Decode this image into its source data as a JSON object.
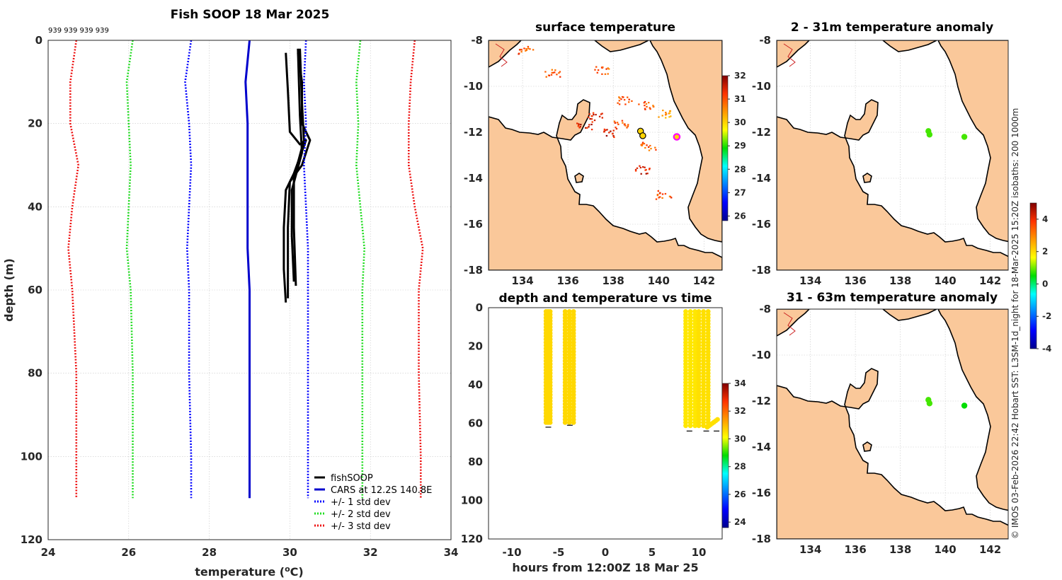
{
  "figure": {
    "credit": "© IMOS 03-Feb-2026 22:42 Hobart SST: L3SM-1d_night for 18-Mar-2025 15:20Z isobaths: 200  1000m"
  },
  "colors": {
    "fishSOOP": "#000000",
    "CARS": "#0000cc",
    "std1": "#0000ff",
    "std2": "#22dd22",
    "std3": "#ee1111",
    "land": "#fac89a"
  },
  "chart_data": [
    {
      "id": "profile",
      "type": "line",
      "title": "Fish SOOP 18 Mar 2025",
      "annotation": "939 939 939 939",
      "xlabel": "temperature (",
      "xlabel_sup": "o",
      "xlabel_end": "C)",
      "ylabel": "depth (m)",
      "xlim": [
        24,
        34
      ],
      "ylim": [
        0,
        120
      ],
      "y_reversed": true,
      "xticks": [
        "24",
        "26",
        "28",
        "30",
        "32",
        "34"
      ],
      "yticks": [
        "0",
        "20",
        "40",
        "60",
        "80",
        "100",
        "120"
      ],
      "grid": true,
      "legend_position": "bottom-right",
      "legend": [
        "fishSOOP",
        "CARS at 12.2S 140.8E",
        "+/- 1 std dev",
        "+/- 2 std dev",
        "+/- 3 std dev"
      ],
      "series": [
        {
          "name": "fishSOOP profile 1",
          "style": "solid-black",
          "points": [
            [
              29.9,
              3
            ],
            [
              29.95,
              12
            ],
            [
              30.0,
              22
            ],
            [
              30.25,
              25
            ],
            [
              30.4,
              24
            ],
            [
              30.1,
              32
            ],
            [
              29.9,
              36
            ],
            [
              29.85,
              45
            ],
            [
              29.85,
              55
            ],
            [
              29.9,
              63
            ]
          ]
        },
        {
          "name": "fishSOOP profile 2",
          "style": "solid-black",
          "points": [
            [
              30.2,
              3
            ],
            [
              30.3,
              10
            ],
            [
              30.3,
              20
            ],
            [
              30.5,
              24
            ],
            [
              30.3,
              30
            ],
            [
              30.0,
              34
            ],
            [
              29.95,
              45
            ],
            [
              29.95,
              55
            ],
            [
              29.95,
              62
            ]
          ]
        },
        {
          "name": "fishSOOP profile 3",
          "style": "solid-black",
          "points": [
            [
              30.25,
              2
            ],
            [
              30.3,
              15
            ],
            [
              30.35,
              24
            ],
            [
              30.1,
              33
            ],
            [
              30.1,
              45
            ],
            [
              30.15,
              59
            ]
          ]
        },
        {
          "name": "fishSOOP profile 4",
          "style": "solid-black",
          "points": [
            [
              30.2,
              2
            ],
            [
              30.25,
              18
            ],
            [
              30.3,
              27
            ],
            [
              30.05,
              36
            ],
            [
              30.05,
              47
            ],
            [
              30.1,
              58
            ]
          ]
        },
        {
          "name": "CARS at 12.2S 140.8E",
          "style": "solid-blue",
          "points": [
            [
              29.0,
              0
            ],
            [
              28.9,
              10
            ],
            [
              28.95,
              20
            ],
            [
              28.95,
              30
            ],
            [
              28.95,
              40
            ],
            [
              28.95,
              50
            ],
            [
              29.0,
              60
            ],
            [
              29.0,
              80
            ],
            [
              29.0,
              100
            ],
            [
              29.0,
              110
            ]
          ]
        },
        {
          "name": "-1 std dev",
          "style": "dot-blue",
          "points": [
            [
              27.55,
              0
            ],
            [
              27.4,
              10
            ],
            [
              27.5,
              20
            ],
            [
              27.55,
              30
            ],
            [
              27.5,
              40
            ],
            [
              27.45,
              50
            ],
            [
              27.5,
              60
            ],
            [
              27.5,
              80
            ],
            [
              27.55,
              100
            ],
            [
              27.55,
              110
            ]
          ]
        },
        {
          "name": "+1 std dev",
          "style": "dot-blue",
          "points": [
            [
              30.4,
              0
            ],
            [
              30.35,
              10
            ],
            [
              30.4,
              20
            ],
            [
              30.35,
              30
            ],
            [
              30.4,
              40
            ],
            [
              30.45,
              50
            ],
            [
              30.45,
              60
            ],
            [
              30.45,
              80
            ],
            [
              30.45,
              100
            ],
            [
              30.45,
              110
            ]
          ]
        },
        {
          "name": "-2 std dev",
          "style": "dot-green",
          "points": [
            [
              26.1,
              0
            ],
            [
              25.95,
              10
            ],
            [
              26.0,
              20
            ],
            [
              26.05,
              30
            ],
            [
              26.0,
              40
            ],
            [
              25.95,
              50
            ],
            [
              26.05,
              60
            ],
            [
              26.1,
              80
            ],
            [
              26.1,
              100
            ],
            [
              26.1,
              110
            ]
          ]
        },
        {
          "name": "+2 std dev",
          "style": "dot-green",
          "points": [
            [
              31.75,
              0
            ],
            [
              31.65,
              10
            ],
            [
              31.7,
              20
            ],
            [
              31.65,
              30
            ],
            [
              31.75,
              40
            ],
            [
              31.85,
              50
            ],
            [
              31.8,
              60
            ],
            [
              31.8,
              80
            ],
            [
              31.8,
              100
            ],
            [
              31.8,
              110
            ]
          ]
        },
        {
          "name": "-3 std dev",
          "style": "dot-red",
          "points": [
            [
              24.7,
              0
            ],
            [
              24.55,
              10
            ],
            [
              24.55,
              20
            ],
            [
              24.75,
              30
            ],
            [
              24.6,
              40
            ],
            [
              24.5,
              50
            ],
            [
              24.6,
              60
            ],
            [
              24.7,
              80
            ],
            [
              24.7,
              100
            ],
            [
              24.7,
              110
            ]
          ]
        },
        {
          "name": "+3 std dev",
          "style": "dot-red",
          "points": [
            [
              33.1,
              0
            ],
            [
              33.0,
              10
            ],
            [
              32.95,
              20
            ],
            [
              32.95,
              30
            ],
            [
              33.1,
              40
            ],
            [
              33.3,
              50
            ],
            [
              33.2,
              60
            ],
            [
              33.2,
              80
            ],
            [
              33.25,
              100
            ],
            [
              33.25,
              110
            ]
          ]
        }
      ]
    },
    {
      "id": "surface_map",
      "type": "scatter",
      "title": "surface temperature",
      "xlim": [
        132.5,
        142.8
      ],
      "ylim": [
        -18,
        -8
      ],
      "xticks": [
        "134",
        "136",
        "138",
        "140",
        "142"
      ],
      "yticks": [
        "-8",
        "-10",
        "-12",
        "-14",
        "-16",
        "-18"
      ],
      "colorbar": {
        "min": 25.8,
        "max": 32,
        "ticks": [
          "32",
          "31",
          "30",
          "29",
          "28",
          "27",
          "26"
        ]
      },
      "stations": [
        {
          "lon": 139.2,
          "lat": -11.95,
          "value": 30
        },
        {
          "lon": 139.3,
          "lat": -12.15,
          "value": 30
        },
        {
          "lon": 140.8,
          "lat": -12.2,
          "value": 30,
          "highlight": "magenta"
        }
      ],
      "sst_patches": [
        {
          "lon": 134.1,
          "lat": -8.4,
          "value": 31
        },
        {
          "lon": 135.3,
          "lat": -9.4,
          "value": 31
        },
        {
          "lon": 137.5,
          "lat": -9.3,
          "value": 31
        },
        {
          "lon": 138.5,
          "lat": -10.6,
          "value": 31
        },
        {
          "lon": 139.4,
          "lat": -10.8,
          "value": 31
        },
        {
          "lon": 137.2,
          "lat": -11.3,
          "value": 31.5
        },
        {
          "lon": 138.3,
          "lat": -11.6,
          "value": 31
        },
        {
          "lon": 139.3,
          "lat": -13.6,
          "value": 31.5
        },
        {
          "lon": 139.5,
          "lat": -12.6,
          "value": 31
        },
        {
          "lon": 140.3,
          "lat": -11.2,
          "value": 30.5
        },
        {
          "lon": 140.2,
          "lat": -14.7,
          "value": 31
        },
        {
          "lon": 136.7,
          "lat": -11.7,
          "value": 31.5
        },
        {
          "lon": 137.8,
          "lat": -12.0,
          "value": 31.5
        }
      ]
    },
    {
      "id": "anom_upper",
      "type": "scatter",
      "title": "2 - 31m temperature anomaly",
      "xlim": [
        132.5,
        142.8
      ],
      "ylim": [
        -18,
        -8
      ],
      "xticks": [
        "134",
        "136",
        "138",
        "140",
        "142"
      ],
      "yticks": [
        "-8",
        "-10",
        "-12",
        "-14",
        "-16",
        "-18"
      ],
      "stations": [
        {
          "lon": 139.25,
          "lat": -11.95,
          "value": 0.8
        },
        {
          "lon": 139.3,
          "lat": -12.1,
          "value": 0.8
        },
        {
          "lon": 140.85,
          "lat": -12.2,
          "value": 0.8
        }
      ]
    },
    {
      "id": "anom_lower",
      "type": "scatter",
      "title": "31 - 63m temperature anomaly",
      "xlim": [
        132.5,
        142.8
      ],
      "ylim": [
        -18,
        -8
      ],
      "xticks": [
        "134",
        "136",
        "138",
        "140",
        "142"
      ],
      "yticks": [
        "-8",
        "-10",
        "-12",
        "-14",
        "-16",
        "-18"
      ],
      "colorbar": {
        "min": -4,
        "max": 5,
        "ticks": [
          "4",
          "2",
          "0",
          "-2",
          "-4"
        ]
      },
      "stations": [
        {
          "lon": 139.25,
          "lat": -11.95,
          "value": 0.8
        },
        {
          "lon": 139.3,
          "lat": -12.1,
          "value": 0.8
        },
        {
          "lon": 140.85,
          "lat": -12.2,
          "value": 0.5
        }
      ]
    },
    {
      "id": "depth_time",
      "type": "scatter",
      "title": "depth and temperature vs time",
      "xlabel": "hours from 12:00Z 18 Mar 25",
      "xlim": [
        -12.5,
        12.5
      ],
      "ylim": [
        0,
        120
      ],
      "y_reversed": true,
      "xticks": [
        "-10",
        "-5",
        "0",
        "5",
        "10"
      ],
      "yticks": [
        "0",
        "20",
        "40",
        "60",
        "80",
        "100",
        "120"
      ],
      "colorbar": {
        "min": 23.6,
        "max": 34,
        "ticks": [
          "34",
          "32",
          "30",
          "28",
          "26",
          "24"
        ]
      },
      "casts": [
        {
          "t_start": -6.35,
          "t_end": -5.9,
          "max_depth": 61,
          "value": 30.6
        },
        {
          "t_start": -4.3,
          "t_end": -3.4,
          "max_depth": 60,
          "value": 30.6
        },
        {
          "t_start": 8.6,
          "t_end": 9.6,
          "max_depth": 62,
          "value": 30.4
        },
        {
          "t_start": 10.0,
          "t_end": 11.0,
          "max_depth": 62,
          "value": 30.5
        }
      ],
      "bottom_markers": [
        {
          "t": -6.1,
          "depth": 62
        },
        {
          "t": -3.8,
          "depth": 61
        },
        {
          "t": 9.0,
          "depth": 64
        },
        {
          "t": 10.8,
          "depth": 64
        },
        {
          "t": 11.9,
          "depth": 64
        }
      ],
      "tail": {
        "t_start": 10.9,
        "t_end": 12.0,
        "depth_start": 62,
        "depth_end": 58,
        "value": 30.5
      }
    }
  ]
}
